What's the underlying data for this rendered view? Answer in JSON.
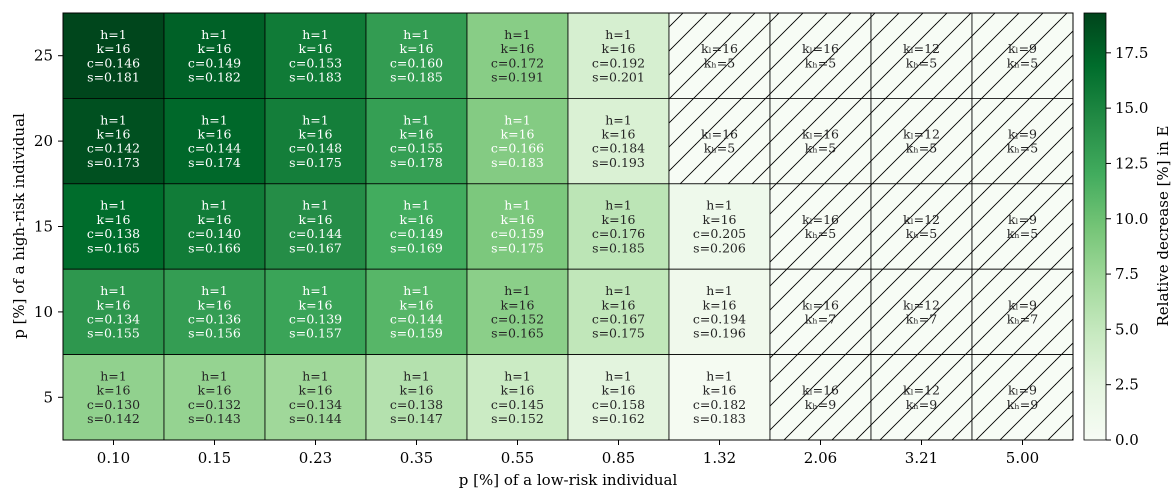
{
  "chart_data": {
    "type": "heatmap",
    "xlabel": "p [%] of a low-risk individual",
    "ylabel": "p [%] of a high-risk individual",
    "x_categories": [
      "0.10",
      "0.15",
      "0.23",
      "0.35",
      "0.55",
      "0.85",
      "1.32",
      "2.06",
      "3.21",
      "5.00"
    ],
    "y_categories": [
      "25",
      "20",
      "15",
      "10",
      "5"
    ],
    "colorbar": {
      "label": "Relative decrease [%] in E",
      "ticks": [
        "0.0",
        "2.5",
        "5.0",
        "7.5",
        "10.0",
        "12.5",
        "15.0",
        "17.5"
      ],
      "range": [
        0,
        19.3
      ],
      "colormap": "Greens"
    },
    "values": [
      [
        19.2,
        17.6,
        15.8,
        13.2,
        8.6,
        3.6,
        null,
        null,
        null,
        null
      ],
      [
        18.6,
        17.2,
        15.5,
        13.0,
        8.8,
        3.3,
        null,
        null,
        null,
        null
      ],
      [
        16.9,
        15.7,
        14.3,
        12.0,
        9.2,
        5.5,
        1.2,
        null,
        null,
        null
      ],
      [
        13.6,
        13.1,
        12.6,
        11.0,
        8.4,
        5.2,
        1.0,
        null,
        null,
        null
      ],
      [
        8.1,
        7.9,
        7.3,
        6.0,
        4.5,
        2.6,
        0.3,
        null,
        null,
        null
      ]
    ],
    "annotations": [
      [
        [
          "h=1",
          "k=16",
          "c=0.146",
          "s=0.181"
        ],
        [
          "h=1",
          "k=16",
          "c=0.149",
          "s=0.182"
        ],
        [
          "h=1",
          "k=16",
          "c=0.153",
          "s=0.183"
        ],
        [
          "h=1",
          "k=16",
          "c=0.160",
          "s=0.185"
        ],
        [
          "h=1",
          "k=16",
          "c=0.172",
          "s=0.191"
        ],
        [
          "h=1",
          "k=16",
          "c=0.192",
          "s=0.201"
        ],
        [
          "kₗ=16",
          "kₕ=5"
        ],
        [
          "kₗ=16",
          "kₕ=5"
        ],
        [
          "kₗ=12",
          "kₕ=5"
        ],
        [
          "kₗ=9",
          "kₕ=5"
        ]
      ],
      [
        [
          "h=1",
          "k=16",
          "c=0.142",
          "s=0.173"
        ],
        [
          "h=1",
          "k=16",
          "c=0.144",
          "s=0.174"
        ],
        [
          "h=1",
          "k=16",
          "c=0.148",
          "s=0.175"
        ],
        [
          "h=1",
          "k=16",
          "c=0.155",
          "s=0.178"
        ],
        [
          "h=1",
          "k=16",
          "c=0.166",
          "s=0.183"
        ],
        [
          "h=1",
          "k=16",
          "c=0.184",
          "s=0.193"
        ],
        [
          "kₗ=16",
          "kₕ=5"
        ],
        [
          "kₗ=16",
          "kₕ=5"
        ],
        [
          "kₗ=12",
          "kₕ=5"
        ],
        [
          "kₗ=9",
          "kₕ=5"
        ]
      ],
      [
        [
          "h=1",
          "k=16",
          "c=0.138",
          "s=0.165"
        ],
        [
          "h=1",
          "k=16",
          "c=0.140",
          "s=0.166"
        ],
        [
          "h=1",
          "k=16",
          "c=0.144",
          "s=0.167"
        ],
        [
          "h=1",
          "k=16",
          "c=0.149",
          "s=0.169"
        ],
        [
          "h=1",
          "k=16",
          "c=0.159",
          "s=0.175"
        ],
        [
          "h=1",
          "k=16",
          "c=0.176",
          "s=0.185"
        ],
        [
          "h=1",
          "k=16",
          "c=0.205",
          "s=0.206"
        ],
        [
          "kₗ=16",
          "kₕ=5"
        ],
        [
          "kₗ=12",
          "kₕ=5"
        ],
        [
          "kₗ=9",
          "kₕ=5"
        ]
      ],
      [
        [
          "h=1",
          "k=16",
          "c=0.134",
          "s=0.155"
        ],
        [
          "h=1",
          "k=16",
          "c=0.136",
          "s=0.156"
        ],
        [
          "h=1",
          "k=16",
          "c=0.139",
          "s=0.157"
        ],
        [
          "h=1",
          "k=16",
          "c=0.144",
          "s=0.159"
        ],
        [
          "h=1",
          "k=16",
          "c=0.152",
          "s=0.165"
        ],
        [
          "h=1",
          "k=16",
          "c=0.167",
          "s=0.175"
        ],
        [
          "h=1",
          "k=16",
          "c=0.194",
          "s=0.196"
        ],
        [
          "kₗ=16",
          "kₕ=7"
        ],
        [
          "kₗ=12",
          "kₕ=7"
        ],
        [
          "kₗ=9",
          "kₕ=7"
        ]
      ],
      [
        [
          "h=1",
          "k=16",
          "c=0.130",
          "s=0.142"
        ],
        [
          "h=1",
          "k=16",
          "c=0.132",
          "s=0.143"
        ],
        [
          "h=1",
          "k=16",
          "c=0.134",
          "s=0.144"
        ],
        [
          "h=1",
          "k=16",
          "c=0.138",
          "s=0.147"
        ],
        [
          "h=1",
          "k=16",
          "c=0.145",
          "s=0.152"
        ],
        [
          "h=1",
          "k=16",
          "c=0.158",
          "s=0.162"
        ],
        [
          "h=1",
          "k=16",
          "c=0.182",
          "s=0.183"
        ],
        [
          "kₗ=16",
          "kₕ=9"
        ],
        [
          "kₗ=12",
          "kₕ=9"
        ],
        [
          "kₗ=9",
          "kₕ=9"
        ]
      ]
    ],
    "hatched_cell_meaning": "cells without h/k/c/s annotation are hatched with diagonal lines"
  }
}
